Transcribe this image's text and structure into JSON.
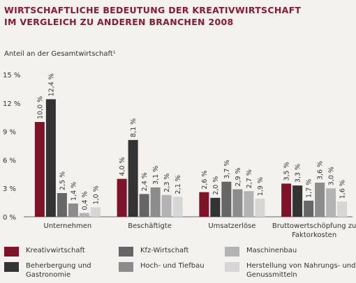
{
  "chart_data": {
    "type": "bar",
    "title_lines": [
      "WIRTSCHAFTLICHE BEDEUTUNG DER KREATIVWIRTSCHAFT",
      "IM VERGLEICH ZU ANDEREN BRANCHEN 2008"
    ],
    "ylabel": "Anteil an der Gesamtwirtschaft¹",
    "ylim": [
      0,
      15
    ],
    "yticks": [
      0,
      3,
      6,
      9,
      12,
      15
    ],
    "ytick_labels": [
      "0 %",
      "3 %",
      "6 %",
      "9 %",
      "12 %",
      "15 %"
    ],
    "categories": [
      "Unternehmen",
      "Beschäftigte",
      "Umsatzerlöse",
      "Bruttowertschöpfung zu\nFaktorkosten"
    ],
    "series": [
      {
        "name": "Kreativwirtschaft",
        "color": "#7d1229",
        "values": [
          10.0,
          4.0,
          2.6,
          3.5
        ],
        "labels": [
          "10,0 %",
          "4,0 %",
          "2,6 %",
          "3,5 %"
        ]
      },
      {
        "name": "Beherbergung und\nGastronomie",
        "color": "#333333",
        "values": [
          12.4,
          8.1,
          2.0,
          3.3
        ],
        "labels": [
          "12,4 %",
          "8,1 %",
          "2,0 %",
          "3,3 %"
        ]
      },
      {
        "name": "Kfz-Wirtschaft",
        "color": "#666666",
        "values": [
          2.5,
          2.4,
          3.7,
          1.7
        ],
        "labels": [
          "2,5 %",
          "2,4 %",
          "3,7 %",
          "1,7 %"
        ]
      },
      {
        "name": "Hoch- und Tiefbau",
        "color": "#8c8c8c",
        "values": [
          1.4,
          3.1,
          2.9,
          3.6
        ],
        "labels": [
          "1,4 %",
          "3,1 %",
          "2,9 %",
          "3,6 %"
        ]
      },
      {
        "name": "Maschinenbau",
        "color": "#b3b3b3",
        "values": [
          0.4,
          2.3,
          2.7,
          3.0
        ],
        "labels": [
          "0,4 %",
          "2,3 %",
          "2,7 %",
          "3,0 %"
        ]
      },
      {
        "name": "Herstellung von Nahrungs- und\nGenussmitteln",
        "color": "#d6d6d6",
        "values": [
          1.0,
          2.1,
          1.9,
          1.6
        ],
        "labels": [
          "1,0 %",
          "2,1 %",
          "1,9 %",
          "1,6 %"
        ]
      }
    ],
    "grid": false,
    "legend": "bottom"
  }
}
